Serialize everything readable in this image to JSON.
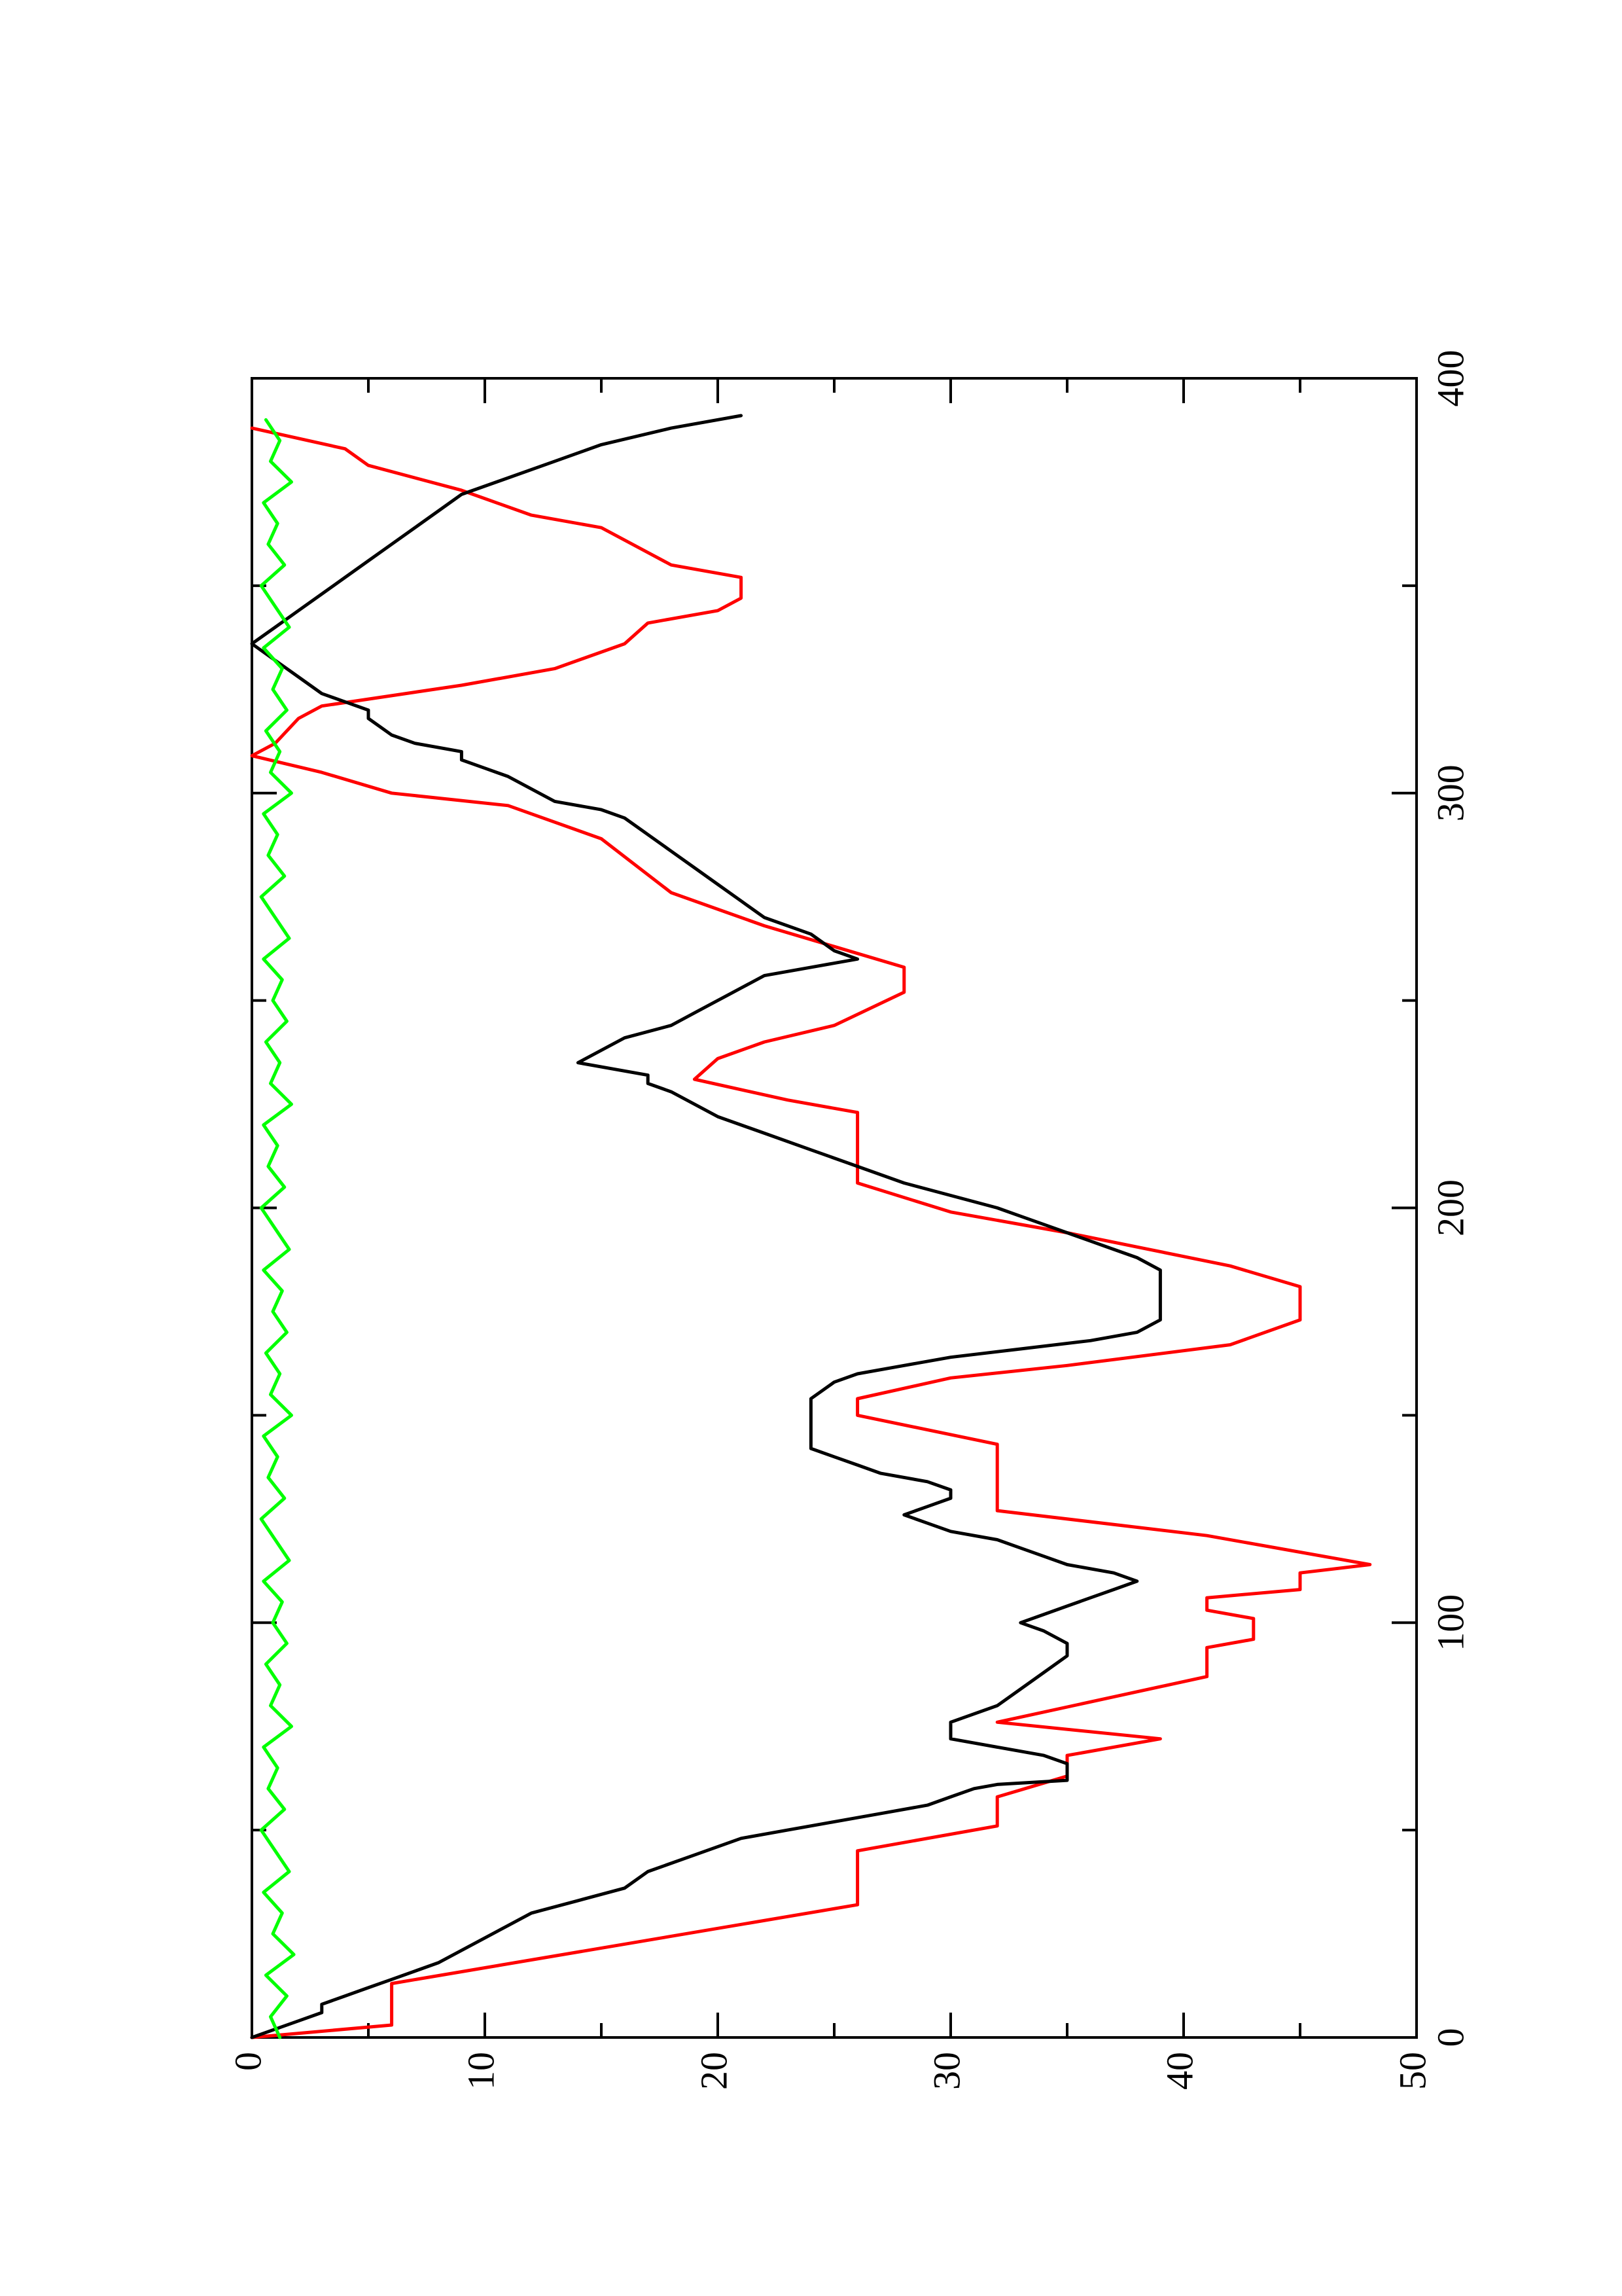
{
  "chart_data": {
    "type": "line",
    "orientation": "rotated 90 degrees (page landscape): x axis runs vertically, y axis runs horizontally",
    "title": "",
    "xlabel": "",
    "ylabel": "",
    "xlim": [
      0,
      400
    ],
    "ylim": [
      0,
      50
    ],
    "x_ticks": [
      "0",
      "100",
      "200",
      "300",
      "400"
    ],
    "y_ticks": [
      "0",
      "10",
      "20",
      "30",
      "40",
      "50"
    ],
    "grid": false,
    "legend": "none",
    "series": [
      {
        "color": "#ff0000",
        "step": true,
        "points": [
          [
            0,
            0
          ],
          [
            3,
            6
          ],
          [
            13,
            6
          ],
          [
            32,
            26
          ],
          [
            45,
            26
          ],
          [
            51,
            32
          ],
          [
            58,
            32
          ],
          [
            63,
            35
          ],
          [
            68,
            35
          ],
          [
            72,
            39
          ],
          [
            76,
            32
          ],
          [
            87,
            41
          ],
          [
            94,
            41
          ],
          [
            96,
            43
          ],
          [
            101,
            43
          ],
          [
            103,
            41
          ],
          [
            106,
            41
          ],
          [
            108,
            45
          ],
          [
            112,
            45
          ],
          [
            114,
            48
          ],
          [
            121,
            41
          ],
          [
            127,
            32
          ],
          [
            143,
            32
          ],
          [
            150,
            26
          ],
          [
            154,
            26
          ],
          [
            159,
            30
          ],
          [
            162,
            35
          ],
          [
            167,
            42
          ],
          [
            173,
            45
          ],
          [
            181,
            45
          ],
          [
            186,
            42
          ],
          [
            194,
            35
          ],
          [
            199,
            30
          ],
          [
            206,
            26
          ],
          [
            223,
            26
          ],
          [
            226,
            23
          ],
          [
            231,
            19
          ],
          [
            236,
            20
          ],
          [
            240,
            22
          ],
          [
            244,
            25
          ],
          [
            252,
            28
          ],
          [
            258,
            28
          ],
          [
            263,
            25
          ],
          [
            268,
            22
          ],
          [
            276,
            18
          ],
          [
            289,
            15
          ],
          [
            297,
            11
          ],
          [
            300,
            6
          ],
          [
            305,
            3
          ],
          [
            309,
            0
          ],
          [
            312,
            1
          ],
          [
            318,
            2
          ],
          [
            321,
            3
          ],
          [
            326,
            9
          ],
          [
            330,
            13
          ],
          [
            336,
            16
          ],
          [
            341,
            17
          ],
          [
            344,
            20
          ],
          [
            347,
            21
          ],
          [
            352,
            21
          ],
          [
            355,
            18
          ],
          [
            358,
            17
          ],
          [
            364,
            15
          ],
          [
            367,
            12
          ],
          [
            373,
            9
          ],
          [
            379,
            5
          ],
          [
            383,
            4
          ],
          [
            388,
            0
          ]
        ]
      },
      {
        "color": "#000000",
        "step": false,
        "points": [
          [
            0,
            0
          ],
          [
            2,
            1
          ],
          [
            4,
            2
          ],
          [
            6,
            3
          ],
          [
            8,
            3
          ],
          [
            10,
            4
          ],
          [
            12,
            5
          ],
          [
            14,
            6
          ],
          [
            16,
            7
          ],
          [
            18,
            8
          ],
          [
            21,
            9
          ],
          [
            24,
            10
          ],
          [
            27,
            11
          ],
          [
            30,
            12
          ],
          [
            33,
            14
          ],
          [
            36,
            16
          ],
          [
            40,
            17
          ],
          [
            44,
            19
          ],
          [
            48,
            21
          ],
          [
            50,
            23
          ],
          [
            52,
            25
          ],
          [
            54,
            27
          ],
          [
            56,
            29
          ],
          [
            58,
            30
          ],
          [
            60,
            31
          ],
          [
            61,
            32
          ],
          [
            62,
            35
          ],
          [
            64,
            35
          ],
          [
            66,
            35
          ],
          [
            68,
            34
          ],
          [
            72,
            30
          ],
          [
            76,
            30
          ],
          [
            80,
            32
          ],
          [
            84,
            33
          ],
          [
            88,
            34
          ],
          [
            92,
            35
          ],
          [
            95,
            35
          ],
          [
            98,
            34
          ],
          [
            100,
            33
          ],
          [
            102,
            34
          ],
          [
            104,
            35
          ],
          [
            106,
            36
          ],
          [
            108,
            37
          ],
          [
            110,
            38
          ],
          [
            112,
            37
          ],
          [
            114,
            35
          ],
          [
            116,
            34
          ],
          [
            118,
            33
          ],
          [
            120,
            32
          ],
          [
            122,
            30
          ],
          [
            124,
            29
          ],
          [
            126,
            28
          ],
          [
            128,
            29
          ],
          [
            130,
            30
          ],
          [
            132,
            30
          ],
          [
            134,
            29
          ],
          [
            136,
            27
          ],
          [
            138,
            26
          ],
          [
            140,
            25
          ],
          [
            142,
            24
          ],
          [
            146,
            24
          ],
          [
            150,
            24
          ],
          [
            154,
            24
          ],
          [
            158,
            25
          ],
          [
            160,
            26
          ],
          [
            162,
            28
          ],
          [
            164,
            30
          ],
          [
            166,
            33
          ],
          [
            168,
            36
          ],
          [
            170,
            38
          ],
          [
            173,
            39
          ],
          [
            177,
            39
          ],
          [
            181,
            39
          ],
          [
            185,
            39
          ],
          [
            188,
            38
          ],
          [
            190,
            37
          ],
          [
            192,
            36
          ],
          [
            194,
            35
          ],
          [
            196,
            34
          ],
          [
            198,
            33
          ],
          [
            200,
            32
          ],
          [
            203,
            30
          ],
          [
            206,
            28
          ],
          [
            210,
            26
          ],
          [
            214,
            24
          ],
          [
            218,
            22
          ],
          [
            222,
            20
          ],
          [
            225,
            19
          ],
          [
            228,
            18
          ],
          [
            230,
            17
          ],
          [
            232,
            17
          ],
          [
            235,
            14
          ],
          [
            238,
            15
          ],
          [
            241,
            16
          ],
          [
            244,
            18
          ],
          [
            247,
            19
          ],
          [
            250,
            20
          ],
          [
            253,
            21
          ],
          [
            256,
            22
          ],
          [
            258,
            24
          ],
          [
            260,
            26
          ],
          [
            262,
            25
          ],
          [
            266,
            24
          ],
          [
            270,
            22
          ],
          [
            274,
            21
          ],
          [
            278,
            20
          ],
          [
            282,
            19
          ],
          [
            286,
            18
          ],
          [
            290,
            17
          ],
          [
            294,
            16
          ],
          [
            296,
            15
          ],
          [
            298,
            13
          ],
          [
            301,
            12
          ],
          [
            304,
            11
          ],
          [
            306,
            10
          ],
          [
            308,
            9
          ],
          [
            310,
            9
          ],
          [
            312,
            7
          ],
          [
            314,
            6
          ],
          [
            318,
            5
          ],
          [
            320,
            5
          ],
          [
            322,
            4
          ],
          [
            324,
            3
          ],
          [
            328,
            2
          ],
          [
            332,
            1
          ],
          [
            336,
            0
          ],
          [
            340,
            1
          ],
          [
            344,
            2
          ],
          [
            348,
            3
          ],
          [
            352,
            4
          ],
          [
            356,
            5
          ],
          [
            360,
            6
          ],
          [
            364,
            7
          ],
          [
            368,
            8
          ],
          [
            372,
            9
          ],
          [
            376,
            11
          ],
          [
            380,
            13
          ],
          [
            384,
            15
          ],
          [
            388,
            18
          ],
          [
            391,
            21
          ]
        ]
      },
      {
        "color": "#00ff00",
        "step": false,
        "points": [
          [
            0,
            1.2
          ],
          [
            5,
            0.8
          ],
          [
            10,
            1.5
          ],
          [
            15,
            0.6
          ],
          [
            20,
            1.8
          ],
          [
            25,
            0.9
          ],
          [
            30,
            1.3
          ],
          [
            35,
            0.5
          ],
          [
            40,
            1.6
          ],
          [
            45,
            1.0
          ],
          [
            50,
            0.4
          ],
          [
            55,
            1.4
          ],
          [
            60,
            0.7
          ],
          [
            65,
            1.1
          ],
          [
            70,
            0.5
          ],
          [
            75,
            1.7
          ],
          [
            80,
            0.8
          ],
          [
            85,
            1.2
          ],
          [
            90,
            0.6
          ],
          [
            95,
            1.5
          ],
          [
            100,
            0.9
          ],
          [
            105,
            1.3
          ],
          [
            110,
            0.5
          ],
          [
            115,
            1.6
          ],
          [
            120,
            1.0
          ],
          [
            125,
            0.4
          ],
          [
            130,
            1.4
          ],
          [
            135,
            0.7
          ],
          [
            140,
            1.1
          ],
          [
            145,
            0.5
          ],
          [
            150,
            1.7
          ],
          [
            155,
            0.8
          ],
          [
            160,
            1.2
          ],
          [
            165,
            0.6
          ],
          [
            170,
            1.5
          ],
          [
            175,
            0.9
          ],
          [
            180,
            1.3
          ],
          [
            185,
            0.5
          ],
          [
            190,
            1.6
          ],
          [
            195,
            1.0
          ],
          [
            200,
            0.4
          ],
          [
            205,
            1.4
          ],
          [
            210,
            0.7
          ],
          [
            215,
            1.1
          ],
          [
            220,
            0.5
          ],
          [
            225,
            1.7
          ],
          [
            230,
            0.8
          ],
          [
            235,
            1.2
          ],
          [
            240,
            0.6
          ],
          [
            245,
            1.5
          ],
          [
            250,
            0.9
          ],
          [
            255,
            1.3
          ],
          [
            260,
            0.5
          ],
          [
            265,
            1.6
          ],
          [
            270,
            1.0
          ],
          [
            275,
            0.4
          ],
          [
            280,
            1.4
          ],
          [
            285,
            0.7
          ],
          [
            290,
            1.1
          ],
          [
            295,
            0.5
          ],
          [
            300,
            1.7
          ],
          [
            305,
            0.8
          ],
          [
            310,
            1.2
          ],
          [
            315,
            0.6
          ],
          [
            320,
            1.5
          ],
          [
            325,
            0.9
          ],
          [
            330,
            1.3
          ],
          [
            335,
            0.5
          ],
          [
            340,
            1.6
          ],
          [
            345,
            1.0
          ],
          [
            350,
            0.4
          ],
          [
            355,
            1.4
          ],
          [
            360,
            0.7
          ],
          [
            365,
            1.1
          ],
          [
            370,
            0.5
          ],
          [
            375,
            1.7
          ],
          [
            380,
            0.8
          ],
          [
            385,
            1.2
          ],
          [
            390,
            0.6
          ]
        ]
      }
    ]
  }
}
